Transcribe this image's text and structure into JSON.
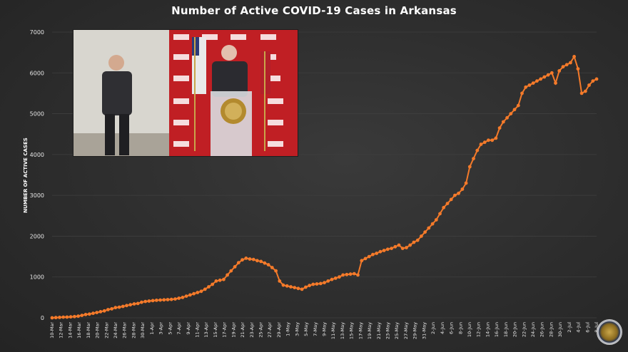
{
  "chart_data": {
    "type": "line",
    "title": "Number of Active COVID-19 Cases in Arkansas",
    "xlabel": "",
    "ylabel": "NUMBER OF ACTIVE CASES",
    "ylim": [
      0,
      7000
    ],
    "yticks": [
      0,
      1000,
      2000,
      3000,
      4000,
      5000,
      6000,
      7000
    ],
    "grid": true,
    "line_color": "#f47a2a",
    "x_tick_labels": [
      "10-Mar",
      "12-Mar",
      "14-Mar",
      "16-Mar",
      "18-Mar",
      "20-Mar",
      "22-Mar",
      "24-Mar",
      "26-Mar",
      "28-Mar",
      "30-Mar",
      "1-Apr",
      "3-Apr",
      "5-Apr",
      "7-Apr",
      "9-Apr",
      "11-Apr",
      "13-Apr",
      "15-Apr",
      "17-Apr",
      "19-Apr",
      "21-Apr",
      "23-Apr",
      "25-Apr",
      "27-Apr",
      "29-Apr",
      "1-May",
      "3-May",
      "5-May",
      "7-May",
      "9-May",
      "11-May",
      "13-May",
      "15-May",
      "17-May",
      "19-May",
      "21-May",
      "23-May",
      "25-May",
      "27-May",
      "29-May",
      "31-May",
      "2-Jun",
      "4-Jun",
      "6-Jun",
      "8-Jun",
      "10-Jun",
      "12-Jun",
      "14-Jun",
      "16-Jun",
      "18-Jun",
      "20-Jun",
      "22-Jun",
      "24-Jun",
      "26-Jun",
      "28-Jun",
      "30-Jun",
      "2-Jul",
      "4-Jul",
      "6-Jul",
      "8-Jul"
    ],
    "series": [
      {
        "values": [
          0,
          5,
          10,
          15,
          18,
          22,
          30,
          40,
          60,
          80,
          90,
          110,
          130,
          150,
          170,
          200,
          220,
          250,
          260,
          280,
          300,
          320,
          340,
          350,
          380,
          400,
          410,
          420,
          430,
          435,
          440,
          445,
          450,
          460,
          480,
          500,
          530,
          560,
          590,
          620,
          650,
          700,
          760,
          820,
          900,
          920,
          940,
          1050,
          1150,
          1250,
          1350,
          1420,
          1460,
          1440,
          1430,
          1400,
          1380,
          1340,
          1300,
          1230,
          1150,
          900,
          800,
          780,
          760,
          740,
          720,
          700,
          750,
          790,
          820,
          830,
          840,
          860,
          900,
          940,
          970,
          1000,
          1050,
          1060,
          1070,
          1080,
          1050,
          1400,
          1450,
          1500,
          1550,
          1580,
          1620,
          1650,
          1680,
          1700,
          1740,
          1780,
          1700,
          1720,
          1780,
          1850,
          1900,
          2000,
          2100,
          2200,
          2300,
          2400,
          2550,
          2700,
          2800,
          2900,
          3000,
          3050,
          3150,
          3300,
          3700,
          3900,
          4100,
          4250,
          4300,
          4350,
          4350,
          4400,
          4650,
          4800,
          4900,
          5000,
          5100,
          5200,
          5500,
          5650,
          5700,
          5750,
          5800,
          5850,
          5900,
          5950,
          6000,
          5750,
          6050,
          6150,
          6200,
          6250,
          6400,
          6100,
          5500,
          5550,
          5700,
          5800,
          5850
        ]
      }
    ]
  }
}
